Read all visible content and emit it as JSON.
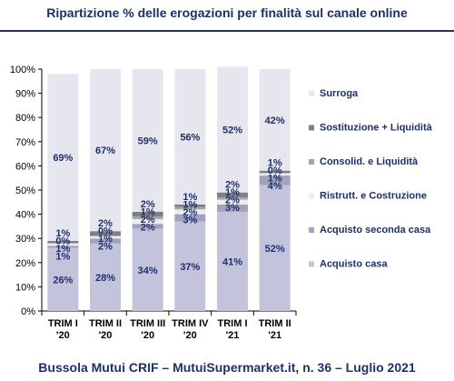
{
  "header": {
    "title": "Ripartizione %  delle erogazioni per finalità sul canale online"
  },
  "footer": {
    "text": "Bussola Mutui CRIF – MutuiSupermarket.it, n. 36 – Luglio 2021"
  },
  "chart_data": {
    "type": "bar",
    "stacked": true,
    "categories": [
      [
        "TRIM I",
        "'20"
      ],
      [
        "TRIM II",
        "'20"
      ],
      [
        "TRIM III",
        "'20"
      ],
      [
        "TRIM IV",
        "'20"
      ],
      [
        "TRIM I",
        "'21"
      ],
      [
        "TRIM II",
        "'21"
      ]
    ],
    "ylim": [
      0,
      100
    ],
    "yticks": [
      0,
      10,
      20,
      30,
      40,
      50,
      60,
      70,
      80,
      90,
      100
    ],
    "ytick_suffix": "%",
    "legend_position": "right",
    "series": [
      {
        "name": "Acquisto casa",
        "color": "#c3c3dc",
        "values": [
          26,
          28,
          34,
          37,
          41,
          52
        ],
        "labels": [
          "26%",
          "28%",
          "34%",
          "37%",
          "41%",
          "52%"
        ]
      },
      {
        "name": "Acquisto seconda casa",
        "color": "#a2a2c0",
        "values": [
          1,
          2,
          2,
          3,
          3,
          4
        ],
        "labels": [
          "1%",
          "2%",
          "2%",
          "3%",
          "3%",
          "4%"
        ]
      },
      {
        "name": "Ristrutt. e Costruzione",
        "color": "#ececf2",
        "values": [
          1,
          1,
          2,
          2,
          2,
          1
        ],
        "labels": [
          "1%",
          "1%",
          "2%",
          "2%",
          "2%",
          "1%"
        ]
      },
      {
        "name": "Consolid. e Liquidità",
        "color": "#a6a6a6",
        "values": [
          0,
          0,
          1,
          1,
          1,
          0
        ],
        "labels": [
          "0%",
          "0%",
          "1%",
          "1%",
          "1%",
          "0%"
        ]
      },
      {
        "name": "Sostituzione + Liquidità",
        "color": "#808080",
        "values": [
          1,
          2,
          2,
          1,
          2,
          1
        ],
        "labels": [
          "1%",
          "2%",
          "2%",
          "1%",
          "2%",
          "1%"
        ]
      },
      {
        "name": "Surroga",
        "color": "#e6e6ef",
        "values": [
          69,
          67,
          59,
          56,
          52,
          42
        ],
        "labels": [
          "69%",
          "67%",
          "59%",
          "56%",
          "52%",
          "42%"
        ]
      }
    ]
  }
}
